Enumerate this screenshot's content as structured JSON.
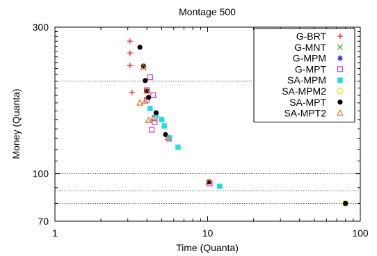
{
  "chart_data": {
    "type": "scatter",
    "title": "Montage 500",
    "xlabel": "Time (Quanta)",
    "ylabel": "Money (Quanta)",
    "xscale": "log",
    "yscale": "log",
    "xlim": [
      1,
      100
    ],
    "ylim": [
      70,
      300
    ],
    "xticks": [
      {
        "value": 1,
        "label": "1"
      },
      {
        "value": 10,
        "label": "10"
      },
      {
        "value": 100,
        "label": "100"
      }
    ],
    "yticks": [
      {
        "value": 70,
        "label": "70"
      },
      {
        "value": 100,
        "label": "100"
      },
      {
        "value": 300,
        "label": "300"
      }
    ],
    "grid": {
      "y": [
        80,
        88,
        100,
        200
      ],
      "style": "dotted"
    },
    "legend_position": "top-right",
    "series": [
      {
        "name": "G-BRT",
        "marker": "plus",
        "color": "#e41a1c",
        "points": [
          [
            3.1,
            270
          ],
          [
            3.1,
            247
          ],
          [
            3.1,
            225
          ],
          [
            3.2,
            184
          ]
        ]
      },
      {
        "name": "G-MNT",
        "marker": "x",
        "color": "#22bb22",
        "points": [
          [
            80,
            80
          ]
        ]
      },
      {
        "name": "G-MPM",
        "marker": "asterisk",
        "color": "#1f1fcc",
        "points": [
          [
            80,
            80
          ]
        ]
      },
      {
        "name": "G-MPT",
        "marker": "open-square",
        "color": "#cc33cc",
        "points": [
          [
            4.2,
            206
          ],
          [
            4.0,
            187
          ],
          [
            4.4,
            180
          ],
          [
            4.0,
            174
          ],
          [
            4.5,
            152
          ],
          [
            4.5,
            147
          ],
          [
            4.3,
            139
          ],
          [
            5.6,
            130
          ],
          [
            10.3,
            93
          ]
        ]
      },
      {
        "name": "SA-MPM",
        "marker": "filled-square",
        "color": "#22dddd",
        "points": [
          [
            4.2,
            163
          ],
          [
            4.6,
            155
          ],
          [
            5.0,
            150
          ],
          [
            5.2,
            143
          ],
          [
            5.6,
            131
          ],
          [
            6.4,
            122
          ],
          [
            12.0,
            91
          ]
        ]
      },
      {
        "name": "SA-MPM2",
        "marker": "open-circle",
        "color": "#e6e600",
        "points": [
          [
            80,
            80
          ]
        ]
      },
      {
        "name": "SA-MPT",
        "marker": "filled-circle",
        "color": "#000000",
        "points": [
          [
            3.6,
            258
          ],
          [
            3.8,
            224
          ],
          [
            3.9,
            201
          ],
          [
            4.0,
            186
          ],
          [
            4.1,
            177
          ],
          [
            4.6,
            158
          ],
          [
            5.3,
            134
          ],
          [
            10.2,
            94
          ],
          [
            80,
            80
          ]
        ]
      },
      {
        "name": "SA-MPT2",
        "marker": "open-triangle",
        "color": "#e07020",
        "points": [
          [
            3.8,
            222
          ],
          [
            4.0,
            186
          ],
          [
            3.6,
            170
          ],
          [
            3.9,
            172
          ],
          [
            4.1,
            149
          ],
          [
            4.4,
            151
          ],
          [
            5.5,
            131
          ],
          [
            10.2,
            94
          ]
        ]
      }
    ]
  }
}
